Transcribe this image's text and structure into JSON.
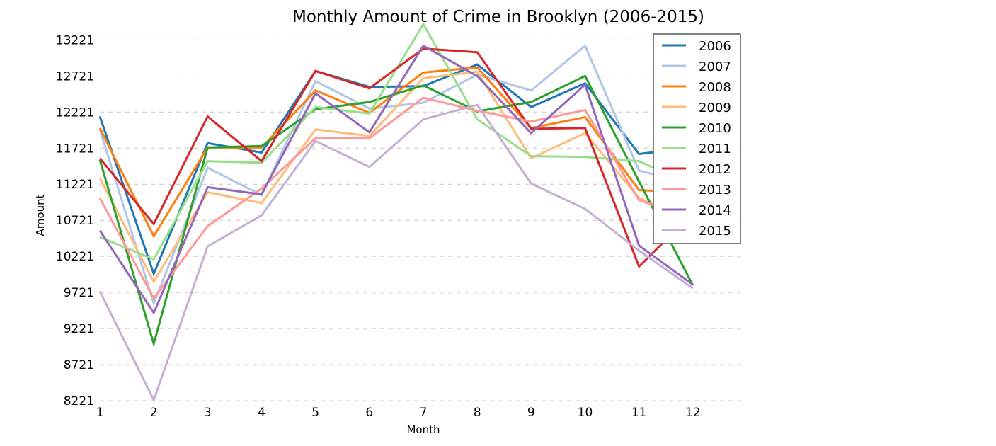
{
  "chart_data": {
    "type": "line",
    "title": "Monthly Amount of Crime in Brooklyn (2006-2015)",
    "xlabel": "Month",
    "ylabel": "Amount",
    "x": [
      1,
      2,
      3,
      4,
      5,
      6,
      7,
      8,
      9,
      10,
      11,
      12
    ],
    "x_ticks": [
      "1",
      "2",
      "3",
      "4",
      "5",
      "6",
      "7",
      "8",
      "9",
      "10",
      "11",
      "12"
    ],
    "xlim": [
      1,
      13
    ],
    "y_ticks": [
      "8221",
      "8721",
      "9221",
      "9721",
      "10221",
      "10721",
      "11221",
      "11721",
      "12221",
      "12721",
      "13221"
    ],
    "ylim": [
      8221,
      13421
    ],
    "grid": "horizontal dashed",
    "legend_position": "top-right",
    "series": [
      {
        "name": "2006",
        "color": "#1f77b4",
        "values": [
          12160,
          9980,
          11790,
          11660,
          12790,
          12570,
          12580,
          12880,
          12290,
          12620,
          11640,
          11730
        ]
      },
      {
        "name": "2007",
        "color": "#aec7e8",
        "values": [
          11980,
          9570,
          11450,
          11070,
          12650,
          12270,
          12350,
          12740,
          12520,
          13140,
          11410,
          11220
        ]
      },
      {
        "name": "2008",
        "color": "#ff7f0e",
        "values": [
          12000,
          10500,
          11730,
          11730,
          12520,
          12210,
          12770,
          12840,
          12000,
          12150,
          11140,
          11100
        ]
      },
      {
        "name": "2009",
        "color": "#ffbb78",
        "values": [
          11310,
          9870,
          11110,
          10960,
          11980,
          11890,
          12690,
          12780,
          11580,
          11930,
          11030,
          10710
        ]
      },
      {
        "name": "2010",
        "color": "#2ca02c",
        "values": [
          11560,
          9010,
          11730,
          11750,
          12260,
          12360,
          12590,
          12230,
          12360,
          12720,
          11260,
          9820
        ]
      },
      {
        "name": "2011",
        "color": "#98df8a",
        "values": [
          10490,
          10180,
          11540,
          11520,
          12290,
          12200,
          13440,
          12120,
          11610,
          11600,
          11540,
          11200
        ]
      },
      {
        "name": "2012",
        "color": "#d62728",
        "values": [
          11580,
          10670,
          12160,
          11540,
          12790,
          12550,
          13100,
          13050,
          11990,
          12000,
          10080,
          10820
        ]
      },
      {
        "name": "2013",
        "color": "#ff9896",
        "values": [
          11030,
          9640,
          10640,
          11160,
          11860,
          11860,
          12420,
          12240,
          12090,
          12250,
          11000,
          10750
        ]
      },
      {
        "name": "2014",
        "color": "#9467bd",
        "values": [
          10580,
          9440,
          11180,
          11080,
          12480,
          11940,
          13140,
          12720,
          11930,
          12600,
          10370,
          9830
        ]
      },
      {
        "name": "2015",
        "color": "#c5b0d5",
        "values": [
          9740,
          8230,
          10360,
          10790,
          11820,
          11460,
          12120,
          12320,
          11230,
          10880,
          10300,
          9780
        ]
      }
    ]
  }
}
